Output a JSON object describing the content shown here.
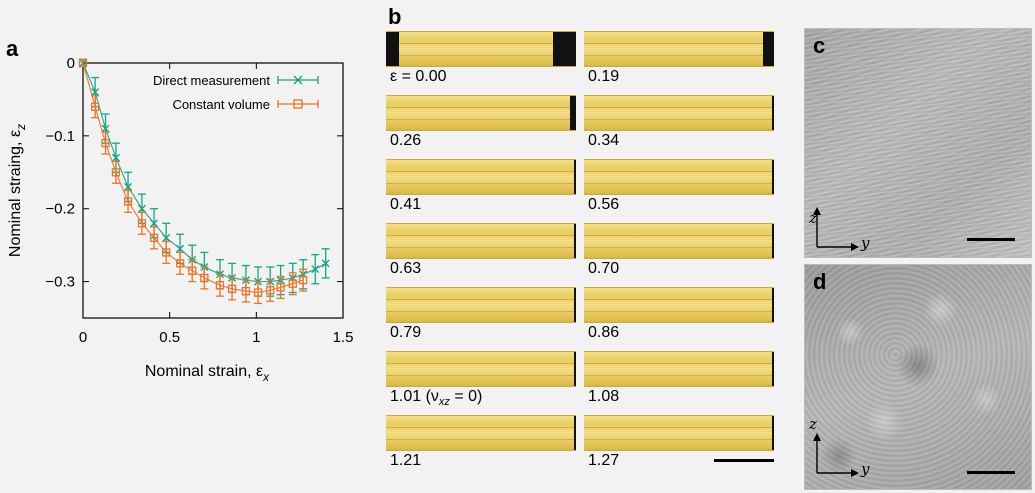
{
  "panels": {
    "a": "a",
    "b": "b",
    "c": "c",
    "d": "d"
  },
  "colors": {
    "direct": "#1aa384",
    "constant": "#e8742b"
  },
  "chart_data": {
    "type": "line",
    "xlabel": "Nominal strain, ε",
    "xlabel_sub": "x",
    "ylabel": "Nominal straing, ε",
    "ylabel_sub": "z",
    "xlim": [
      0,
      1.5
    ],
    "ylim": [
      -0.35,
      0.0
    ],
    "xticks": [
      0,
      0.5,
      1,
      1.5
    ],
    "xtick_labels": [
      "0",
      "0.5",
      "1",
      "1.5"
    ],
    "yticks": [
      0,
      -0.1,
      -0.2,
      -0.3
    ],
    "ytick_labels": [
      "0",
      "−0.1",
      "−0.2",
      "−0.3"
    ],
    "legend_position": "top-right",
    "series": [
      {
        "name": "Direct measurement",
        "marker": "x",
        "color": "#1aa384",
        "x": [
          0,
          0.07,
          0.13,
          0.19,
          0.26,
          0.34,
          0.41,
          0.48,
          0.56,
          0.63,
          0.7,
          0.79,
          0.86,
          0.94,
          1.01,
          1.08,
          1.14,
          1.21,
          1.27,
          1.34,
          1.4
        ],
        "y": [
          0,
          -0.04,
          -0.09,
          -0.13,
          -0.17,
          -0.2,
          -0.22,
          -0.24,
          -0.255,
          -0.27,
          -0.28,
          -0.29,
          -0.295,
          -0.298,
          -0.3,
          -0.3,
          -0.298,
          -0.295,
          -0.29,
          -0.283,
          -0.275
        ],
        "err": [
          0.005,
          0.02,
          0.02,
          0.02,
          0.02,
          0.02,
          0.02,
          0.02,
          0.02,
          0.02,
          0.02,
          0.02,
          0.02,
          0.02,
          0.02,
          0.02,
          0.02,
          0.02,
          0.02,
          0.02,
          0.02
        ]
      },
      {
        "name": "Constant volume",
        "marker": "square",
        "color": "#e8742b",
        "x": [
          0,
          0.07,
          0.13,
          0.19,
          0.26,
          0.34,
          0.41,
          0.48,
          0.56,
          0.63,
          0.7,
          0.79,
          0.86,
          0.94,
          1.01,
          1.08,
          1.14,
          1.21,
          1.27
        ],
        "y": [
          0,
          -0.06,
          -0.11,
          -0.15,
          -0.19,
          -0.22,
          -0.24,
          -0.26,
          -0.275,
          -0.285,
          -0.295,
          -0.305,
          -0.31,
          -0.313,
          -0.315,
          -0.312,
          -0.308,
          -0.303,
          -0.298
        ],
        "err": [
          0.005,
          0.015,
          0.015,
          0.015,
          0.015,
          0.015,
          0.015,
          0.015,
          0.015,
          0.015,
          0.015,
          0.015,
          0.015,
          0.015,
          0.015,
          0.015,
          0.015,
          0.015,
          0.015
        ]
      }
    ]
  },
  "strips": {
    "left": [
      {
        "label": "ε = 0.00",
        "clamp_left": 0.07,
        "clamp_right": 0.12
      },
      {
        "label": "0.26",
        "clamp_left": 0,
        "clamp_right": 0.03
      },
      {
        "label": "0.41",
        "clamp_left": 0,
        "clamp_right": 0.01
      },
      {
        "label": "0.63",
        "clamp_left": 0,
        "clamp_right": 0.01
      },
      {
        "label": "0.79",
        "clamp_left": 0,
        "clamp_right": 0.01
      },
      {
        "label": "1.01 (ν",
        "label_sub": "xz",
        "label_tail": " = 0)",
        "clamp_left": 0,
        "clamp_right": 0.01
      },
      {
        "label": "1.21",
        "clamp_left": 0,
        "clamp_right": 0.01
      }
    ],
    "right": [
      {
        "label": "0.19",
        "clamp_left": 0,
        "clamp_right": 0.06
      },
      {
        "label": "0.34",
        "clamp_left": 0,
        "clamp_right": 0.01
      },
      {
        "label": "0.56",
        "clamp_left": 0,
        "clamp_right": 0.01
      },
      {
        "label": "0.70",
        "clamp_left": 0,
        "clamp_right": 0.01
      },
      {
        "label": "0.86",
        "clamp_left": 0,
        "clamp_right": 0.01
      },
      {
        "label": "1.08",
        "clamp_left": 0,
        "clamp_right": 0.01
      },
      {
        "label": "1.27",
        "clamp_left": 0,
        "clamp_right": 0.01
      }
    ]
  },
  "sem_axes": {
    "z": "z",
    "y": "y"
  }
}
